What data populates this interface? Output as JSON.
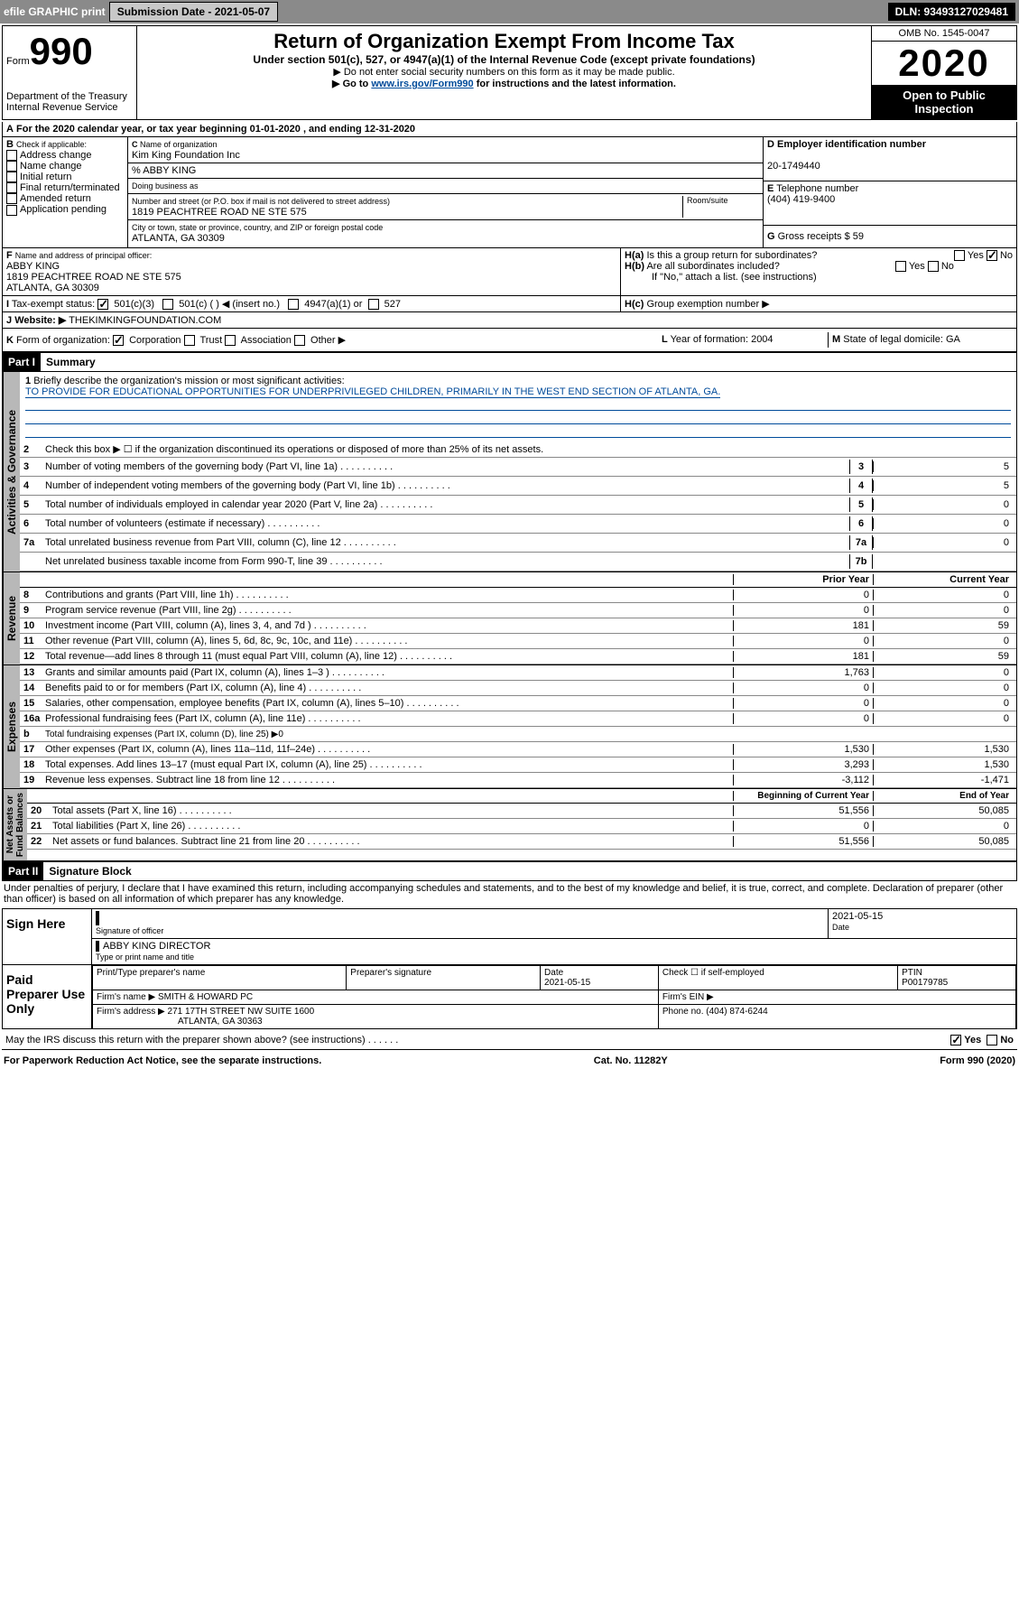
{
  "header": {
    "efile": "efile GRAPHIC print",
    "submission": "Submission Date - 2021-05-07",
    "dln": "DLN: 93493127029481"
  },
  "top": {
    "form": "990",
    "formsm": "Form",
    "dept": "Department of the Treasury",
    "irs": "Internal Revenue Service",
    "title": "Return of Organization Exempt From Income Tax",
    "sub1": "Under section 501(c), 527, or 4947(a)(1) of the Internal Revenue Code (except private foundations)",
    "sub2": "▶ Do not enter social security numbers on this form as it may be made public.",
    "sub3a": "▶ Go to ",
    "sub3link": "www.irs.gov/Form990",
    "sub3b": " for instructions and the latest information.",
    "omb": "OMB No. 1545-0047",
    "year": "2020",
    "open": "Open to Public Inspection"
  },
  "A": "For the 2020 calendar year, or tax year beginning 01-01-2020     , and ending 12-31-2020",
  "B": {
    "lbl": "Check if applicable:",
    "items": [
      "Address change",
      "Name change",
      "Initial return",
      "Final return/terminated",
      "Amended return",
      "Application pending"
    ]
  },
  "C": {
    "namelbl": "Name of organization",
    "name": "Kim King Foundation Inc",
    "care": "% ABBY KING",
    "dbalbl": "Doing business as",
    "addrlbl": "Number and street (or P.O. box if mail is not delivered to street address)",
    "room": "Room/suite",
    "addr": "1819 PEACHTREE ROAD NE STE 575",
    "citylbl": "City or town, state or province, country, and ZIP or foreign postal code",
    "city": "ATLANTA, GA  30309"
  },
  "D": {
    "lbl": "Employer identification number",
    "val": "20-1749440"
  },
  "E": {
    "lbl": "Telephone number",
    "val": "(404) 419-9400"
  },
  "G": {
    "lbl": "Gross receipts $ 59"
  },
  "F": {
    "lbl": "Name and address of principal officer:",
    "name": "ABBY KING",
    "addr": "1819 PEACHTREE ROAD NE STE 575",
    "city": "ATLANTA, GA  30309"
  },
  "H": {
    "a": "Is this a group return for subordinates?",
    "b": "Are all subordinates included?",
    "bnote": "If \"No,\" attach a list. (see instructions)",
    "c": "Group exemption number ▶"
  },
  "I": {
    "lbl": "Tax-exempt status:",
    "opts": [
      "501(c)(3)",
      "501(c) (  ) ◀ (insert no.)",
      "4947(a)(1) or",
      "527"
    ]
  },
  "J": {
    "lbl": "Website: ▶",
    "val": "THEKIMKINGFOUNDATION.COM"
  },
  "K": {
    "lbl": "Form of organization:",
    "opts": [
      "Corporation",
      "Trust",
      "Association",
      "Other ▶"
    ]
  },
  "L": {
    "lbl": "Year of formation: 2004"
  },
  "M": {
    "lbl": "State of legal domicile: GA"
  },
  "p1": {
    "lbl": "Part I",
    "title": "Summary"
  },
  "summary": {
    "l1": "Briefly describe the organization's mission or most significant activities:",
    "mission": "TO PROVIDE FOR EDUCATIONAL OPPORTUNITIES FOR UNDERPRIVILEGED CHILDREN, PRIMARILY IN THE WEST END SECTION OF ATLANTA, GA.",
    "l2": "Check this box ▶ ☐  if the organization discontinued its operations or disposed of more than 25% of its net assets.",
    "l3": "Number of voting members of the governing body (Part VI, line 1a)",
    "v3": "5",
    "l4": "Number of independent voting members of the governing body (Part VI, line 1b)",
    "v4": "5",
    "l5": "Total number of individuals employed in calendar year 2020 (Part V, line 2a)",
    "v5": "0",
    "l6": "Total number of volunteers (estimate if necessary)",
    "v6": "0",
    "l7a": "Total unrelated business revenue from Part VIII, column (C), line 12",
    "v7a": "0",
    "l7b": "Net unrelated business taxable income from Form 990-T, line 39",
    "v7b": ""
  },
  "cols": {
    "py": "Prior Year",
    "cy": "Current Year",
    "boy": "Beginning of Current Year",
    "eoy": "End of Year"
  },
  "rev": [
    {
      "n": "8",
      "t": "Contributions and grants (Part VIII, line 1h)",
      "p": "0",
      "c": "0"
    },
    {
      "n": "9",
      "t": "Program service revenue (Part VIII, line 2g)",
      "p": "0",
      "c": "0"
    },
    {
      "n": "10",
      "t": "Investment income (Part VIII, column (A), lines 3, 4, and 7d )",
      "p": "181",
      "c": "59"
    },
    {
      "n": "11",
      "t": "Other revenue (Part VIII, column (A), lines 5, 6d, 8c, 9c, 10c, and 11e)",
      "p": "0",
      "c": "0"
    },
    {
      "n": "12",
      "t": "Total revenue—add lines 8 through 11 (must equal Part VIII, column (A), line 12)",
      "p": "181",
      "c": "59"
    }
  ],
  "exp": [
    {
      "n": "13",
      "t": "Grants and similar amounts paid (Part IX, column (A), lines 1–3 )",
      "p": "1,763",
      "c": "0"
    },
    {
      "n": "14",
      "t": "Benefits paid to or for members (Part IX, column (A), line 4)",
      "p": "0",
      "c": "0"
    },
    {
      "n": "15",
      "t": "Salaries, other compensation, employee benefits (Part IX, column (A), lines 5–10)",
      "p": "0",
      "c": "0"
    },
    {
      "n": "16a",
      "t": "Professional fundraising fees (Part IX, column (A), line 11e)",
      "p": "0",
      "c": "0"
    },
    {
      "n": "b",
      "t": "Total fundraising expenses (Part IX, column (D), line 25) ▶0",
      "p": "",
      "c": "",
      "gray": true
    },
    {
      "n": "17",
      "t": "Other expenses (Part IX, column (A), lines 11a–11d, 11f–24e)",
      "p": "1,530",
      "c": "1,530"
    },
    {
      "n": "18",
      "t": "Total expenses. Add lines 13–17 (must equal Part IX, column (A), line 25)",
      "p": "3,293",
      "c": "1,530"
    },
    {
      "n": "19",
      "t": "Revenue less expenses. Subtract line 18 from line 12",
      "p": "-3,112",
      "c": "-1,471"
    }
  ],
  "na": [
    {
      "n": "20",
      "t": "Total assets (Part X, line 16)",
      "p": "51,556",
      "c": "50,085"
    },
    {
      "n": "21",
      "t": "Total liabilities (Part X, line 26)",
      "p": "0",
      "c": "0"
    },
    {
      "n": "22",
      "t": "Net assets or fund balances. Subtract line 21 from line 20",
      "p": "51,556",
      "c": "50,085"
    }
  ],
  "p2": {
    "lbl": "Part II",
    "title": "Signature Block"
  },
  "perjury": "Under penalties of perjury, I declare that I have examined this return, including accompanying schedules and statements, and to the best of my knowledge and belief, it is true, correct, and complete. Declaration of preparer (other than officer) is based on all information of which preparer has any knowledge.",
  "sign": {
    "here": "Sign Here",
    "date": "2021-05-15",
    "siglbl": "Signature of officer",
    "datelbl": "Date",
    "name": "ABBY KING  DIRECTOR",
    "namelbl": "Type or print name and title"
  },
  "paid": {
    "lbl": "Paid Preparer Use Only",
    "h": [
      "Print/Type preparer's name",
      "Preparer's signature",
      "Date",
      "Check ☐ if self-employed",
      "PTIN"
    ],
    "r1": [
      "",
      "",
      "2021-05-15",
      "",
      "P00179785"
    ],
    "r2a": "Firm's name    ▶ SMITH & HOWARD PC",
    "r2b": "Firm's EIN ▶",
    "r3a": "Firm's address ▶ 271 17TH STREET NW SUITE 1600",
    "r3b": "Phone no. (404) 874-6244",
    "r3c": "ATLANTA, GA  30363"
  },
  "discuss": "May the IRS discuss this return with the preparer shown above? (see instructions)",
  "footer": {
    "l": "For Paperwork Reduction Act Notice, see the separate instructions.",
    "m": "Cat. No. 11282Y",
    "r": "Form 990 (2020)"
  }
}
